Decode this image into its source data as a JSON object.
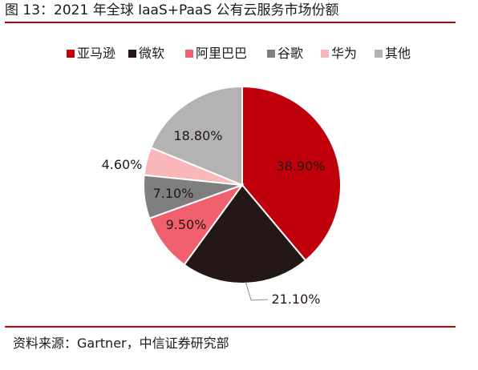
{
  "figure_title": "图 13：2021 年全球 IaaS+PaaS 公有云服务市场份额",
  "source": "资料来源：Gartner，中信证券研究部",
  "colors": {
    "rule": "#c0000b"
  },
  "chart_data": {
    "type": "pie",
    "title": "",
    "legend_position": "top",
    "categories": [
      "亚马逊",
      "微软",
      "阿里巴巴",
      "谷歌",
      "华为",
      "其他"
    ],
    "values": [
      38.9,
      21.1,
      9.5,
      7.1,
      4.6,
      18.8
    ],
    "labels": [
      "38.90%",
      "21.10%",
      "9.50%",
      "7.10%",
      "4.60%",
      "18.80%"
    ],
    "colors": [
      "#c0000b",
      "#231815",
      "#f0606e",
      "#7f7f7f",
      "#f9b7b9",
      "#b3b3b3"
    ],
    "label_colors": [
      "#231815",
      "#231815",
      "#231815",
      "#231815",
      "#231815",
      "#231815"
    ]
  }
}
